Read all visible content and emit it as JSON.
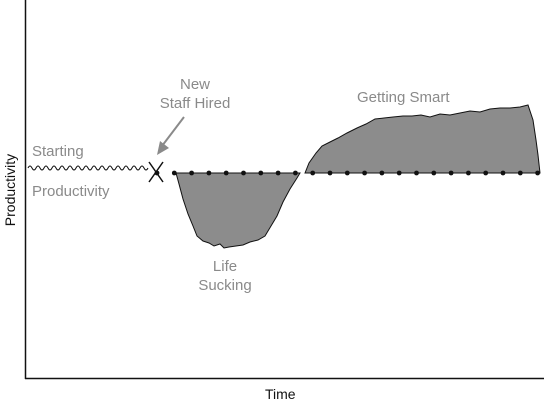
{
  "axes": {
    "x_title": "Time",
    "y_title": "Productivity"
  },
  "annotations": {
    "starting_line1": "Starting",
    "starting_line2": "Productivity",
    "new_staff_line1": "New",
    "new_staff_line2": "Staff Hired",
    "getting_smart": "Getting Smart",
    "life_line1": "Life",
    "life_line2": "Sucking"
  },
  "colors": {
    "fill": "#8c8c8c",
    "line": "#111111",
    "label": "#8a8a8a"
  }
}
